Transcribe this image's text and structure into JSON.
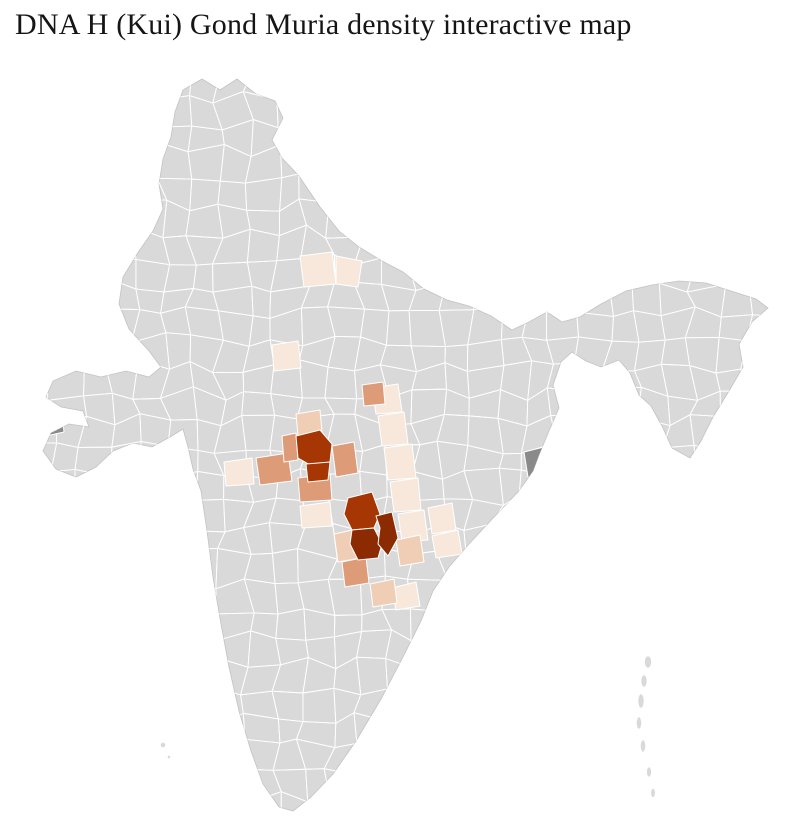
{
  "title": "DNA H (Kui) Gond Muria density interactive map",
  "map": {
    "region": "India",
    "kind": "district density choropleth",
    "colors": {
      "page_background": "#ffffff",
      "district_base": "#d9d9d9",
      "district_border": "#ffffff",
      "no_data": "#8a8a8a",
      "density": {
        "level1": "#f8e8dc",
        "level2": "#f0ceb6",
        "level3": "#dd9b77",
        "level4": "#a63603",
        "level5": "#8c2a02"
      }
    }
  }
}
